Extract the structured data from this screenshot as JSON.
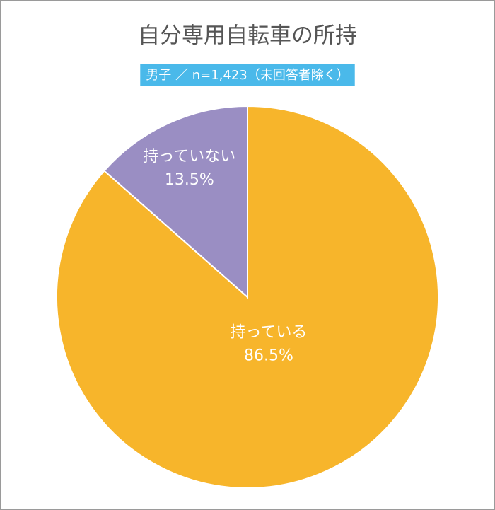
{
  "chart_data": {
    "type": "pie",
    "title": "自分専用自転車の所持",
    "subtitle": "男子 ／ n=1,423（未回答者除く）",
    "categories": [
      "持っている",
      "持っていない"
    ],
    "values": [
      86.5,
      13.5
    ],
    "value_labels": [
      "86.5%",
      "13.5%"
    ],
    "colors": [
      "#f7b52b",
      "#9a8ec3"
    ]
  }
}
